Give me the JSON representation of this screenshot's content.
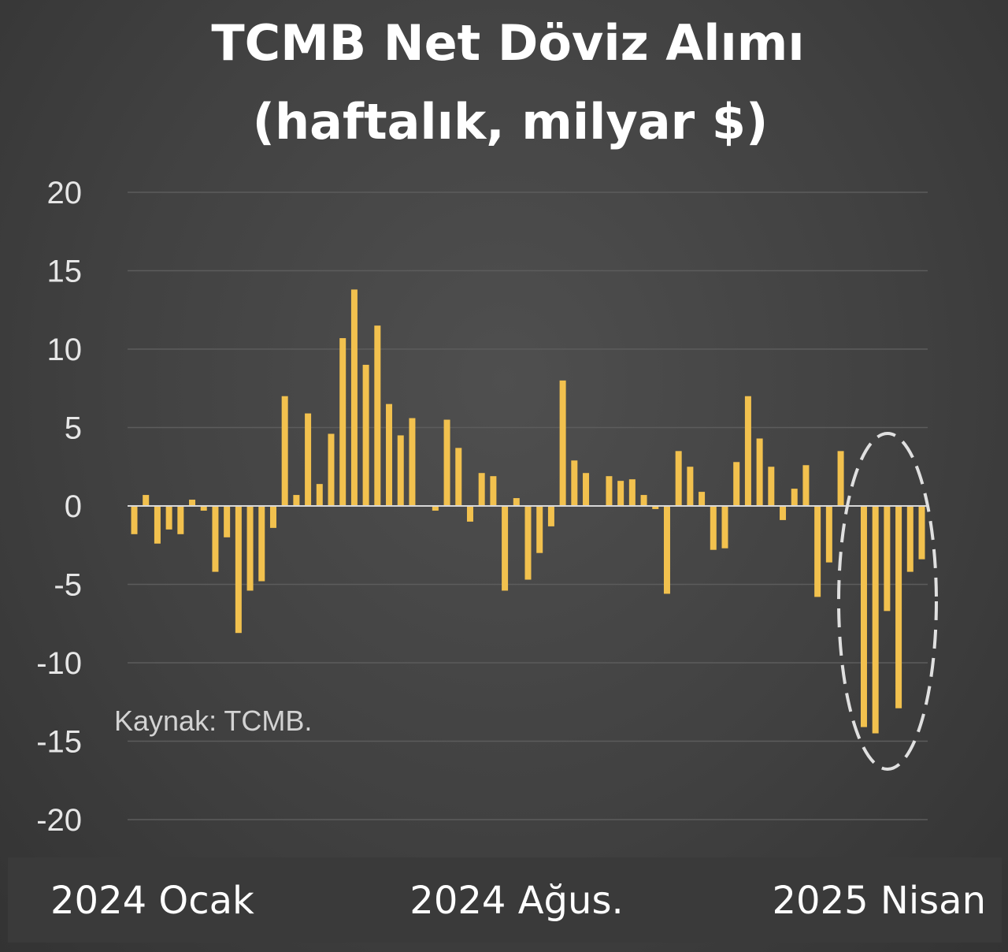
{
  "chart_data": {
    "type": "bar",
    "title": "TCMB Net Döviz Alımı",
    "subtitle": "(haftalık, milyar $)",
    "source_note": "Kaynak: TCMB.",
    "x_axis_labels": [
      "2024 Ocak",
      "2024 Ağus.",
      "2025 Nisan"
    ],
    "ylim": [
      -20,
      20
    ],
    "yticks": [
      20,
      15,
      10,
      5,
      0,
      -5,
      -10,
      -15,
      -20
    ],
    "grid": true,
    "bar_color": "#f2c14e",
    "highlight": "dashed ellipse around the last weeks",
    "values": [
      -1.8,
      0.7,
      -2.4,
      -1.5,
      -1.8,
      0.4,
      -0.3,
      -4.2,
      -2.0,
      -8.1,
      -5.4,
      -4.8,
      -1.4,
      7.0,
      0.7,
      5.9,
      1.4,
      4.6,
      10.7,
      13.8,
      9.0,
      11.5,
      6.5,
      4.5,
      5.6,
      0.0,
      -0.3,
      5.5,
      3.7,
      -1.0,
      2.1,
      1.9,
      -5.4,
      0.5,
      -4.7,
      -3.0,
      -1.3,
      8.0,
      2.9,
      2.1,
      0.0,
      1.9,
      1.6,
      1.7,
      0.7,
      -0.2,
      -5.6,
      3.5,
      2.5,
      0.9,
      -2.8,
      -2.7,
      2.8,
      7.0,
      4.3,
      2.5,
      -0.9,
      1.1,
      2.6,
      -5.8,
      -3.6,
      3.5,
      0.0,
      -14.1,
      -14.5,
      -6.7,
      -12.9,
      -4.2,
      -3.4
    ]
  }
}
